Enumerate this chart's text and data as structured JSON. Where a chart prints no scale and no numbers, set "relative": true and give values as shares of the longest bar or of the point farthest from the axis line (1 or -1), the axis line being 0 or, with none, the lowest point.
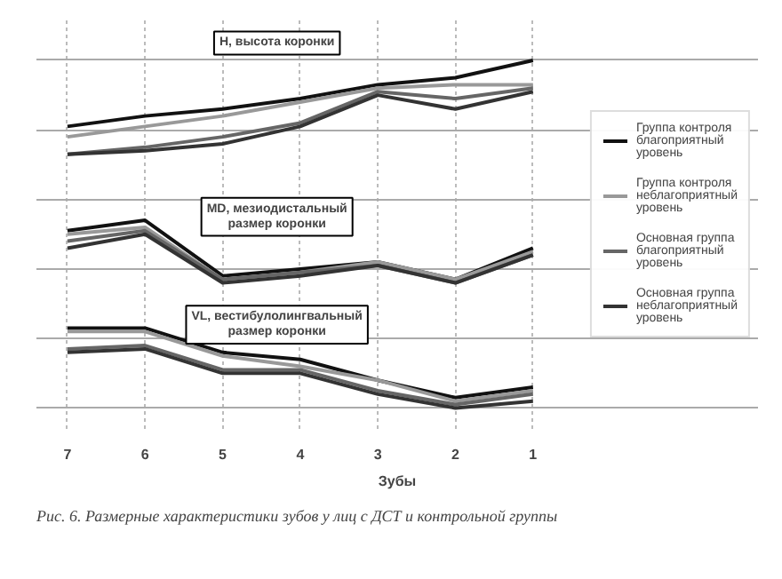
{
  "chart_data": {
    "type": "line",
    "relative": true,
    "xlabel": "Зубы",
    "categories": [
      "7",
      "6",
      "5",
      "4",
      "3",
      "2",
      "1"
    ],
    "series": [
      {
        "name": "Группа контроля\nблагоприятный\nуровень",
        "color": "#111111",
        "values": [
          0.81,
          0.84,
          0.86,
          0.89,
          0.93,
          0.95,
          1.0
        ]
      },
      {
        "name": "Группа контроля\nнеблагоприятный\nуровень",
        "color": "#999999",
        "values": [
          0.78,
          0.81,
          0.84,
          0.88,
          0.92,
          0.93,
          0.93
        ]
      },
      {
        "name": "Основная группа\nблагоприятный\nуровень",
        "color": "#666666",
        "values": [
          0.73,
          0.75,
          0.78,
          0.82,
          0.91,
          0.89,
          0.92
        ]
      },
      {
        "name": "Основная группа\nнеблагоприятный\nуровень",
        "color": "#333333",
        "values": [
          0.73,
          0.74,
          0.76,
          0.81,
          0.9,
          0.86,
          0.91
        ]
      },
      {
        "color": "#111111",
        "values": [
          0.51,
          0.54,
          0.38,
          0.4,
          0.42,
          0.37,
          0.46
        ]
      },
      {
        "color": "#999999",
        "values": [
          0.5,
          0.52,
          0.37,
          0.39,
          0.42,
          0.37,
          0.45
        ]
      },
      {
        "color": "#666666",
        "values": [
          0.48,
          0.51,
          0.37,
          0.39,
          0.41,
          0.36,
          0.44
        ]
      },
      {
        "color": "#333333",
        "values": [
          0.46,
          0.5,
          0.36,
          0.38,
          0.41,
          0.36,
          0.44
        ]
      },
      {
        "color": "#111111",
        "values": [
          0.23,
          0.23,
          0.16,
          0.14,
          0.08,
          0.03,
          0.06
        ]
      },
      {
        "color": "#999999",
        "values": [
          0.22,
          0.22,
          0.15,
          0.12,
          0.08,
          0.02,
          0.05
        ]
      },
      {
        "color": "#666666",
        "values": [
          0.17,
          0.18,
          0.11,
          0.11,
          0.05,
          0.01,
          0.04
        ]
      },
      {
        "color": "#333333",
        "values": [
          0.16,
          0.17,
          0.1,
          0.1,
          0.04,
          0.0,
          0.02
        ]
      }
    ],
    "annotations": [
      "H, высота коронки",
      "MD, мезиодистальный\nразмер коронки",
      "VL, вестибулолингвальный\nразмер коронки",
      "Рис. 6. Размерные характеристики зубов у лиц с ДСТ и контрольной группы"
    ],
    "grid": true,
    "legend": "right"
  }
}
